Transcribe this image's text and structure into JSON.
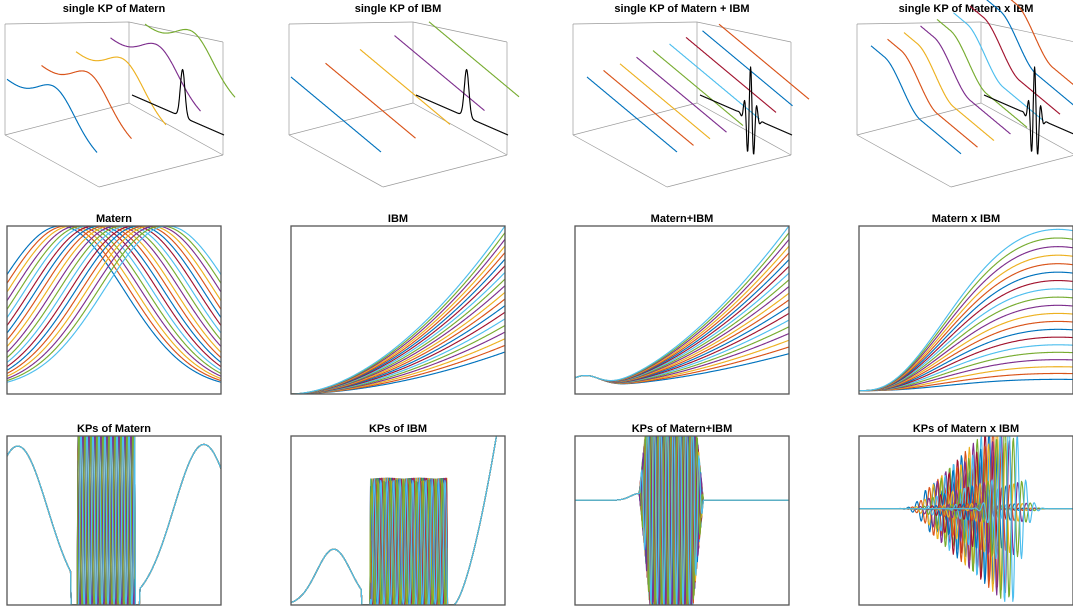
{
  "figure": {
    "colors": [
      "#0072BD",
      "#D95319",
      "#EDB120",
      "#7E2F8E",
      "#77AC30",
      "#4DBEEE",
      "#A2142F"
    ]
  },
  "chart_data": [
    {
      "type": "line",
      "title": "single KP of Matern",
      "style": "3d-waterfall",
      "xlim": [
        0,
        1
      ],
      "ylim": [
        0,
        1
      ],
      "series_count": 5,
      "kernel": "matern",
      "highlight_series": {
        "color": "#000000",
        "shape": "sharp single peak"
      }
    },
    {
      "type": "line",
      "title": "single KP of IBM",
      "style": "3d-waterfall",
      "xlim": [
        0,
        1
      ],
      "ylim": [
        0,
        1
      ],
      "series_count": 5,
      "kernel": "ibm",
      "highlight_series": {
        "color": "#000000",
        "shape": "sharp single peak"
      }
    },
    {
      "type": "line",
      "title": "single KP of Matern + IBM",
      "style": "3d-waterfall",
      "xlim": [
        0,
        1
      ],
      "ylim": [
        0,
        1
      ],
      "series_count": 9,
      "kernel": "matern+ibm",
      "highlight_series": {
        "color": "#000000",
        "shape": "oscillating peak"
      }
    },
    {
      "type": "line",
      "title": "single KP of Matern x IBM",
      "style": "3d-waterfall",
      "xlim": [
        0,
        1
      ],
      "ylim": [
        0,
        1
      ],
      "series_count": 9,
      "kernel": "matern-x-ibm",
      "highlight_series": {
        "color": "#000000",
        "shape": "oscillating peak"
      }
    },
    {
      "type": "line",
      "title": "Matern",
      "xlim": [
        0,
        1
      ],
      "ylim": [
        0,
        1
      ],
      "series_count": 20,
      "kernel": "matern",
      "centers": [
        0.1,
        0.9
      ]
    },
    {
      "type": "line",
      "title": "IBM",
      "xlim": [
        0,
        1
      ],
      "ylim": [
        0,
        1
      ],
      "series_count": 20,
      "kernel": "ibm"
    },
    {
      "type": "line",
      "title": "Matern+IBM",
      "xlim": [
        0,
        1
      ],
      "ylim": [
        0,
        1
      ],
      "series_count": 20,
      "kernel": "matern+ibm",
      "crossing_x": 0.18
    },
    {
      "type": "line",
      "title": "Matern x IBM",
      "xlim": [
        0,
        1
      ],
      "ylim": [
        0,
        1
      ],
      "series_count": 20,
      "kernel": "matern-x-ibm"
    },
    {
      "type": "line",
      "title": "KPs of Matern",
      "xlim": [
        0,
        1
      ],
      "ylim": [
        0,
        1
      ],
      "series_count": 20,
      "kernel": "matern",
      "baseline": 0,
      "oscillation_range": [
        0.33,
        0.59
      ]
    },
    {
      "type": "line",
      "title": "KPs of IBM",
      "xlim": [
        0,
        1
      ],
      "ylim": [
        0,
        1
      ],
      "series_count": 20,
      "kernel": "ibm",
      "baseline": 0,
      "oscillation_range": [
        0.37,
        0.73
      ]
    },
    {
      "type": "line",
      "title": "KPs of Matern+IBM",
      "xlim": [
        0,
        1
      ],
      "ylim": [
        0,
        1
      ],
      "series_count": 20,
      "kernel": "matern+ibm",
      "baseline": 0.62,
      "oscillation_range": [
        0.3,
        0.6
      ]
    },
    {
      "type": "line",
      "title": "KPs of Matern x IBM",
      "xlim": [
        0,
        1
      ],
      "ylim": [
        0,
        1
      ],
      "series_count": 20,
      "kernel": "matern-x-ibm",
      "baseline": 0.57,
      "oscillation_range": [
        0.28,
        0.78
      ]
    }
  ]
}
